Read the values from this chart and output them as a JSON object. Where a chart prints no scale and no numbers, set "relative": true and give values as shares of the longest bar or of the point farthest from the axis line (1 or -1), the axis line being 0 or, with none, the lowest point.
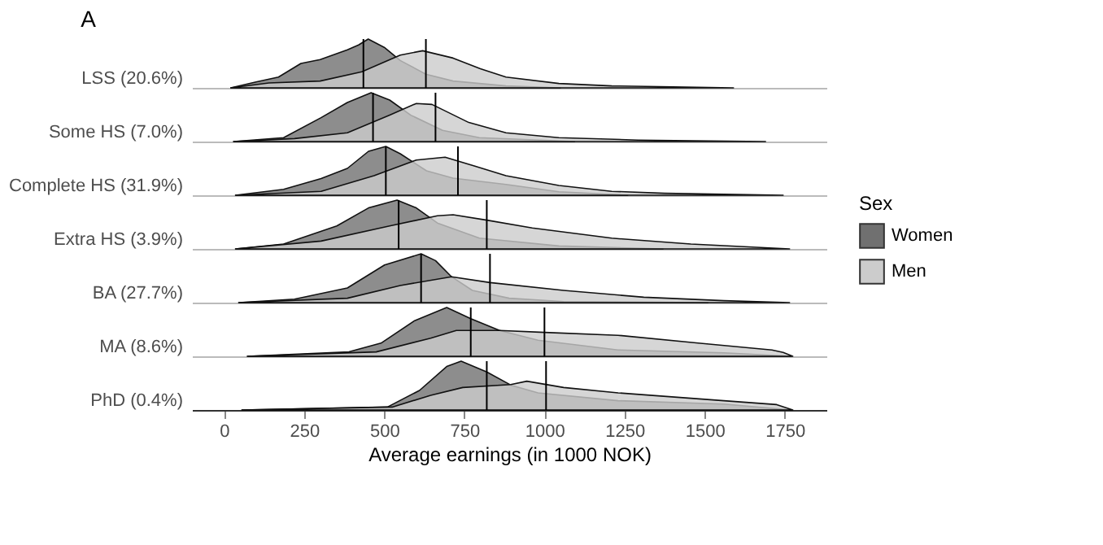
{
  "chart_data": [
    {
      "type": "area",
      "title": "A",
      "ylabel": "LSS (20.6%)",
      "relative": true,
      "xlim": [
        -100,
        1880
      ],
      "xticks": [
        0,
        250,
        500,
        750,
        1000,
        1250,
        1500,
        1750
      ],
      "tick_labels": false,
      "legend": "right",
      "legend_title": "Sex",
      "series": [
        {
          "name": "Women",
          "color": "#707070",
          "x": [
            21,
            100,
            170,
            240,
            300,
            385,
            420,
            450,
            500,
            550,
            630,
            715,
            880,
            1050
          ],
          "values": [
            0,
            0.12,
            0.22,
            0.5,
            0.58,
            0.78,
            0.88,
            1.0,
            0.83,
            0.56,
            0.28,
            0.14,
            0.04,
            0
          ]
        },
        {
          "name": "Men",
          "color": "#cccccc",
          "x": [
            21,
            140,
            300,
            430,
            550,
            620,
            715,
            800,
            880,
            1045,
            1210,
            1400,
            1590
          ],
          "values": [
            0,
            0.1,
            0.14,
            0.33,
            0.67,
            0.76,
            0.61,
            0.39,
            0.22,
            0.09,
            0.04,
            0.02,
            0
          ]
        }
      ],
      "ref_lines": [
        {
          "axis": "x",
          "value": 435
        },
        {
          "axis": "x",
          "value": 630
        }
      ]
    },
    {
      "type": "area",
      "ylabel": "Some HS (7.0%)",
      "relative": true,
      "xlim": [
        -100,
        1880
      ],
      "xticks": [
        0,
        250,
        500,
        750,
        1000,
        1250,
        1500,
        1750
      ],
      "tick_labels": false,
      "series": [
        {
          "color": "#707070",
          "x": [
            30,
            186,
            303,
            385,
            459,
            517,
            583,
            682,
            797,
            1094
          ],
          "values": [
            0,
            0.08,
            0.49,
            0.8,
            1.0,
            0.85,
            0.54,
            0.23,
            0.08,
            0
          ]
        },
        {
          "color": "#cccccc",
          "x": [
            30,
            220,
            385,
            517,
            600,
            649,
            764,
            880,
            1045,
            1292,
            1690
          ],
          "values": [
            0,
            0.06,
            0.18,
            0.54,
            0.78,
            0.76,
            0.39,
            0.18,
            0.08,
            0.03,
            0
          ]
        }
      ],
      "ref_lines": [
        {
          "axis": "x",
          "value": 465
        },
        {
          "axis": "x",
          "value": 660
        }
      ]
    },
    {
      "type": "area",
      "ylabel": "Complete HS (31.9%)",
      "relative": true,
      "xlim": [
        -100,
        1880
      ],
      "xticks": [
        0,
        250,
        500,
        750,
        1000,
        1250,
        1500,
        1750
      ],
      "tick_labels": false,
      "series": [
        {
          "color": "#707070",
          "x": [
            36,
            186,
            303,
            385,
            451,
            505,
            550,
            632,
            715,
            880,
            1045,
            1260
          ],
          "values": [
            0,
            0.12,
            0.34,
            0.55,
            0.9,
            1.0,
            0.85,
            0.5,
            0.35,
            0.22,
            0.07,
            0
          ]
        },
        {
          "color": "#cccccc",
          "x": [
            36,
            303,
            468,
            600,
            690,
            781,
            880,
            1045,
            1210,
            1375,
            1745
          ],
          "values": [
            0,
            0.08,
            0.4,
            0.72,
            0.78,
            0.6,
            0.4,
            0.2,
            0.08,
            0.04,
            0
          ]
        }
      ],
      "ref_lines": [
        {
          "axis": "x",
          "value": 505
        },
        {
          "axis": "x",
          "value": 730
        }
      ]
    },
    {
      "type": "area",
      "ylabel": "Extra HS (3.9%)",
      "relative": true,
      "xlim": [
        -100,
        1880
      ],
      "xticks": [
        0,
        250,
        500,
        750,
        1000,
        1250,
        1500,
        1750
      ],
      "tick_labels": false,
      "series": [
        {
          "color": "#707070",
          "x": [
            36,
            186,
            352,
            451,
            540,
            600,
            666,
            797,
            1045,
            1370
          ],
          "values": [
            0,
            0.1,
            0.47,
            0.84,
            1.0,
            0.84,
            0.53,
            0.22,
            0.06,
            0
          ]
        },
        {
          "color": "#cccccc",
          "x": [
            36,
            303,
            517,
            666,
            715,
            820,
            962,
            1210,
            1457,
            1765
          ],
          "values": [
            0,
            0.16,
            0.47,
            0.68,
            0.7,
            0.59,
            0.43,
            0.22,
            0.1,
            0
          ]
        }
      ],
      "ref_lines": [
        {
          "axis": "x",
          "value": 545
        },
        {
          "axis": "x",
          "value": 820
        }
      ]
    },
    {
      "type": "area",
      "ylabel": "BA (27.7%)",
      "relative": true,
      "xlim": [
        -100,
        1880
      ],
      "xticks": [
        0,
        250,
        500,
        750,
        1000,
        1250,
        1500,
        1750
      ],
      "tick_labels": false,
      "series": [
        {
          "color": "#707070",
          "x": [
            46,
            220,
            385,
            501,
            615,
            660,
            710,
            775,
            890,
            1060,
            1510
          ],
          "values": [
            0,
            0.07,
            0.3,
            0.77,
            1.0,
            0.86,
            0.53,
            0.25,
            0.09,
            0.02,
            0
          ]
        },
        {
          "color": "#cccccc",
          "x": [
            46,
            385,
            550,
            710,
            830,
            1060,
            1310,
            1560,
            1765
          ],
          "values": [
            0,
            0.09,
            0.35,
            0.53,
            0.41,
            0.25,
            0.11,
            0.04,
            0
          ]
        }
      ],
      "ref_lines": [
        {
          "axis": "x",
          "value": 615
        },
        {
          "axis": "x",
          "value": 830
        }
      ]
    },
    {
      "type": "area",
      "ylabel": "MA (8.6%)",
      "relative": true,
      "xlim": [
        -100,
        1880
      ],
      "xticks": [
        0,
        250,
        500,
        750,
        1000,
        1250,
        1500,
        1750
      ],
      "tick_labels": false,
      "series": [
        {
          "color": "#707070",
          "x": [
            73,
            390,
            490,
            595,
            695,
            770,
            860,
            980,
            1230,
            1560,
            1770
          ],
          "values": [
            0,
            0.09,
            0.27,
            0.73,
            1.0,
            0.77,
            0.53,
            0.33,
            0.13,
            0.07,
            0
          ]
        },
        {
          "color": "#cccccc",
          "x": [
            73,
            475,
            645,
            725,
            860,
            1000,
            1230,
            1480,
            1710,
            1745,
            1775
          ],
          "values": [
            0,
            0.09,
            0.37,
            0.53,
            0.53,
            0.49,
            0.43,
            0.27,
            0.13,
            0.08,
            0
          ]
        }
      ],
      "ref_lines": [
        {
          "axis": "x",
          "value": 770
        },
        {
          "axis": "x",
          "value": 1000
        }
      ]
    },
    {
      "type": "area",
      "ylabel": "PhD (0.4%)",
      "xlabel": "Average earnings (in 1000 NOK)",
      "relative": true,
      "xlim": [
        -100,
        1880
      ],
      "xticks": [
        0,
        250,
        500,
        750,
        1000,
        1250,
        1500,
        1750
      ],
      "series": [
        {
          "color": "#707070",
          "x": [
            56,
            510,
            610,
            695,
            740,
            820,
            895,
            980,
            1230,
            1560,
            1770
          ],
          "values": [
            0,
            0.06,
            0.4,
            0.89,
            1.0,
            0.78,
            0.51,
            0.35,
            0.19,
            0.12,
            0
          ]
        },
        {
          "color": "#cccccc",
          "x": [
            56,
            525,
            645,
            745,
            895,
            945,
            1060,
            1230,
            1560,
            1725,
            1775
          ],
          "values": [
            0,
            0.06,
            0.3,
            0.46,
            0.52,
            0.59,
            0.46,
            0.35,
            0.19,
            0.11,
            0
          ]
        }
      ],
      "ref_lines": [
        {
          "axis": "x",
          "value": 820
        },
        {
          "axis": "x",
          "value": 1005
        }
      ]
    }
  ]
}
